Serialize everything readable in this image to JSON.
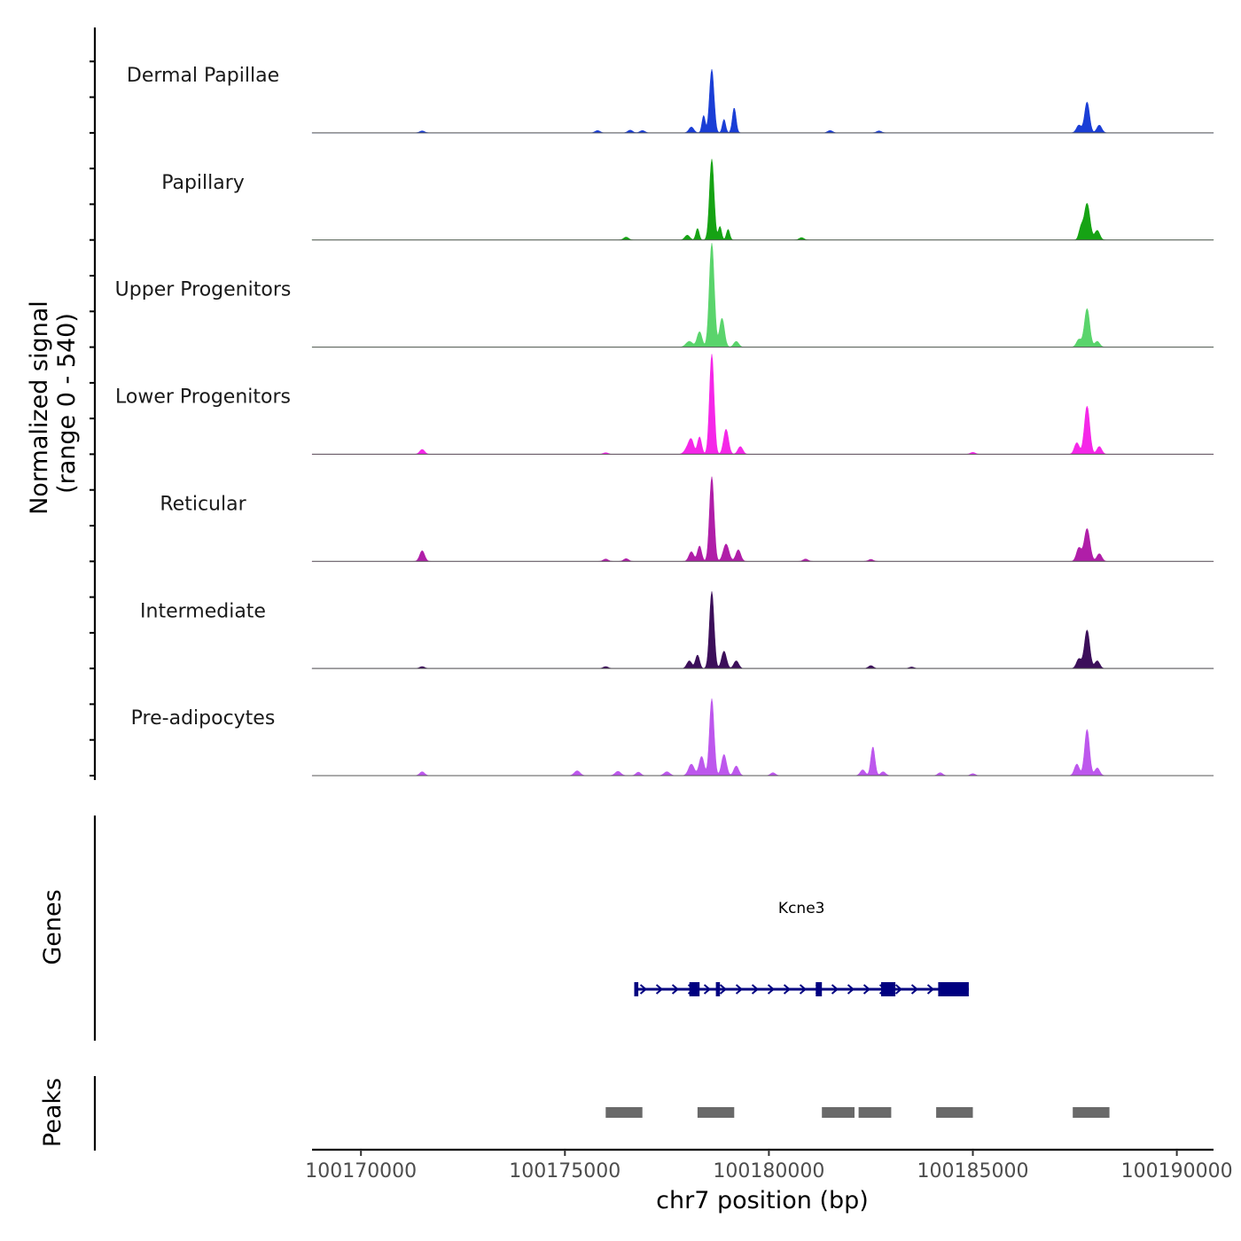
{
  "chart_data": {
    "type": "area",
    "title": "",
    "chromosome": "chr7",
    "xlabel": "chr7 position (bp)",
    "ylabel_line1": "Normalized signal",
    "ylabel_line2": "(range 0 - 540)",
    "y_range": [
      0,
      540
    ],
    "xlim": [
      100168800,
      100190900
    ],
    "x_ticks": [
      100170000,
      100175000,
      100180000,
      100185000,
      100190000
    ],
    "x_tick_labels": [
      "100170000",
      "100175000",
      "100180000",
      "100185000",
      "100190000"
    ],
    "tracks": [
      {
        "name": "Dermal Papillae",
        "color": "#1a3ed6",
        "peaks": [
          [
            100178600,
            330,
            55
          ],
          [
            100178400,
            90,
            40
          ],
          [
            100178900,
            70,
            40
          ],
          [
            100179150,
            130,
            45
          ],
          [
            100178100,
            30,
            60
          ],
          [
            100187800,
            160,
            60
          ],
          [
            100187600,
            40,
            60
          ],
          [
            100188100,
            40,
            60
          ],
          [
            100175800,
            12,
            60
          ],
          [
            100176600,
            14,
            60
          ],
          [
            100176900,
            12,
            60
          ],
          [
            100181500,
            12,
            60
          ],
          [
            100182700,
            10,
            60
          ],
          [
            100171500,
            10,
            60
          ]
        ]
      },
      {
        "name": "Papillary",
        "color": "#16a314",
        "peaks": [
          [
            100178600,
            420,
            55
          ],
          [
            100178250,
            60,
            40
          ],
          [
            100179000,
            55,
            40
          ],
          [
            100178800,
            70,
            40
          ],
          [
            100187800,
            190,
            70
          ],
          [
            100187650,
            60,
            50
          ],
          [
            100188050,
            50,
            60
          ],
          [
            100176500,
            15,
            60
          ],
          [
            100178000,
            25,
            60
          ],
          [
            100180800,
            12,
            60
          ]
        ]
      },
      {
        "name": "Upper Progenitors",
        "color": "#5ad46c",
        "peaks": [
          [
            100178600,
            540,
            60
          ],
          [
            100178850,
            150,
            60
          ],
          [
            100178300,
            80,
            60
          ],
          [
            100178050,
            30,
            80
          ],
          [
            100179200,
            30,
            60
          ],
          [
            100187800,
            200,
            65
          ],
          [
            100187600,
            40,
            60
          ],
          [
            100188050,
            30,
            60
          ]
        ]
      },
      {
        "name": "Lower Progenitors",
        "color": "#f527e8",
        "peaks": [
          [
            100178600,
            520,
            55
          ],
          [
            100178300,
            90,
            50
          ],
          [
            100178100,
            70,
            60
          ],
          [
            100178950,
            130,
            60
          ],
          [
            100179300,
            40,
            60
          ],
          [
            100187800,
            250,
            65
          ],
          [
            100187550,
            60,
            60
          ],
          [
            100188100,
            40,
            60
          ],
          [
            100171500,
            25,
            60
          ],
          [
            100178000,
            30,
            70
          ],
          [
            100185000,
            10,
            60
          ],
          [
            100176000,
            8,
            60
          ]
        ]
      },
      {
        "name": "Reticular",
        "color": "#b01ea8",
        "peaks": [
          [
            100178600,
            440,
            55
          ],
          [
            100178300,
            80,
            50
          ],
          [
            100178100,
            50,
            60
          ],
          [
            100178950,
            90,
            70
          ],
          [
            100179250,
            60,
            60
          ],
          [
            100187800,
            170,
            70
          ],
          [
            100187600,
            70,
            60
          ],
          [
            100188100,
            40,
            60
          ],
          [
            100171500,
            55,
            60
          ],
          [
            100176000,
            12,
            60
          ],
          [
            100176500,
            14,
            60
          ],
          [
            100180900,
            12,
            60
          ],
          [
            100182500,
            10,
            60
          ]
        ]
      },
      {
        "name": "Intermediate",
        "color": "#3c0f5a",
        "peaks": [
          [
            100178600,
            400,
            55
          ],
          [
            100178250,
            70,
            50
          ],
          [
            100178050,
            40,
            60
          ],
          [
            100178900,
            90,
            60
          ],
          [
            100179200,
            40,
            60
          ],
          [
            100187800,
            200,
            65
          ],
          [
            100187600,
            50,
            60
          ],
          [
            100188050,
            40,
            60
          ],
          [
            100182500,
            15,
            60
          ],
          [
            100171500,
            10,
            60
          ],
          [
            100176000,
            10,
            60
          ],
          [
            100183500,
            8,
            60
          ]
        ]
      },
      {
        "name": "Pre-adipocytes",
        "color": "#bd57ed",
        "peaks": [
          [
            100178600,
            400,
            55
          ],
          [
            100178350,
            100,
            60
          ],
          [
            100178100,
            60,
            70
          ],
          [
            100178900,
            110,
            60
          ],
          [
            100179200,
            50,
            60
          ],
          [
            100182550,
            150,
            50
          ],
          [
            100182300,
            30,
            60
          ],
          [
            100182800,
            20,
            60
          ],
          [
            100187800,
            240,
            60
          ],
          [
            100187550,
            60,
            60
          ],
          [
            100188050,
            40,
            60
          ],
          [
            100171500,
            20,
            60
          ],
          [
            100175300,
            25,
            70
          ],
          [
            100176300,
            22,
            70
          ],
          [
            100176800,
            18,
            60
          ],
          [
            100177500,
            20,
            70
          ],
          [
            100180100,
            15,
            60
          ],
          [
            100184200,
            15,
            60
          ],
          [
            100185000,
            10,
            60
          ]
        ]
      }
    ],
    "genes": [
      {
        "name": "Kcne3",
        "start": 100176700,
        "end": 100184900,
        "strand": "+",
        "exons": [
          [
            100176700,
            100176800
          ],
          [
            100178050,
            100178300
          ],
          [
            100178700,
            100178800
          ],
          [
            100181150,
            100181300
          ],
          [
            100182750,
            100183100
          ],
          [
            100184150,
            100184900
          ]
        ]
      }
    ],
    "peaks_track": [
      [
        100176000,
        100176900
      ],
      [
        100178250,
        100179150
      ],
      [
        100181300,
        100182100
      ],
      [
        100182200,
        100183000
      ],
      [
        100184100,
        100185000
      ],
      [
        100187450,
        100188350
      ]
    ],
    "track_labels": {
      "genes": "Genes",
      "peaks": "Peaks"
    },
    "colors": {
      "gene": "#000080",
      "peak": "#696969",
      "axis": "#000000",
      "baseline": "#555555"
    }
  }
}
